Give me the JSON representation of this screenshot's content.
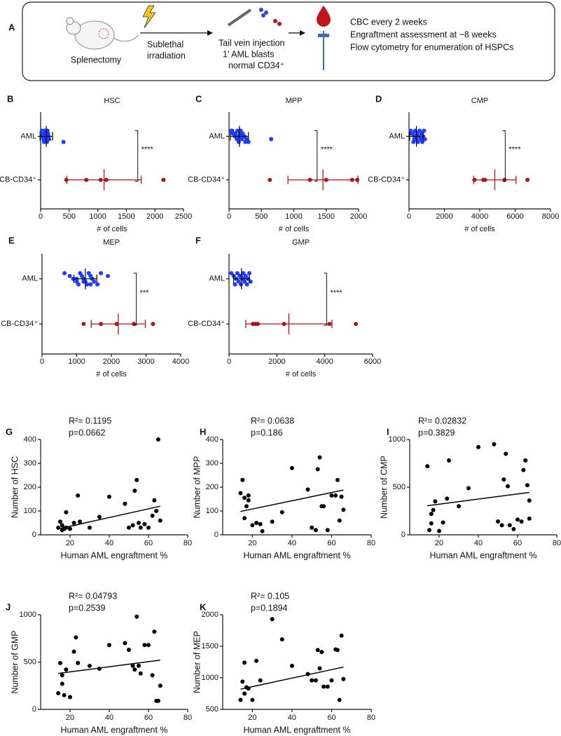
{
  "schematic": {
    "panel": "A",
    "mouse_label": "Splenectomy",
    "irradiation": [
      "Sublethal",
      "irradiation"
    ],
    "injection": [
      "Tail vein injection",
      "1' AML blasts",
      "normal CD34⁺"
    ],
    "monitoring": [
      "CBC every 2 weeks",
      "Engraftment assessment at ~8 weeks",
      "Flow cytometry for enumeration of HSPCs"
    ]
  },
  "chart_data": [
    {
      "type": "dotplot",
      "panel": "B",
      "title": "HSC",
      "xlabel": "# of cells",
      "xlim": [
        0,
        2500
      ],
      "xticks": [
        0,
        500,
        1000,
        1500,
        2000,
        2500
      ],
      "significance": "****",
      "series": [
        {
          "name": "AML",
          "color": "#1f3cff",
          "bar_color": "#111111",
          "values": [
            20,
            30,
            40,
            50,
            60,
            70,
            80,
            90,
            100,
            110,
            120,
            130,
            140,
            150,
            60,
            80,
            100,
            40,
            120,
            400
          ],
          "mean": 100,
          "sd": 110
        },
        {
          "name": "CB-CD34⁺",
          "color": "#a31b1b",
          "bar_color": "#a31b1b",
          "values": [
            450,
            800,
            1050,
            1150,
            2150
          ],
          "mean": 1110,
          "sd": 650
        }
      ]
    },
    {
      "type": "dotplot",
      "panel": "C",
      "title": "MPP",
      "xlabel": "# of cells",
      "xlim": [
        0,
        2000
      ],
      "xticks": [
        0,
        500,
        1000,
        1500,
        2000
      ],
      "significance": "****",
      "series": [
        {
          "name": "AML",
          "color": "#1f3cff",
          "bar_color": "#111111",
          "values": [
            30,
            60,
            90,
            120,
            150,
            180,
            210,
            240,
            270,
            300,
            50,
            100,
            150,
            200,
            250,
            130,
            170,
            210,
            650
          ],
          "mean": 160,
          "sd": 140
        },
        {
          "name": "CB-CD34⁺",
          "color": "#a31b1b",
          "bar_color": "#a31b1b",
          "values": [
            630,
            1250,
            1500,
            1900,
            1980
          ],
          "mean": 1450,
          "sd": 540
        }
      ]
    },
    {
      "type": "dotplot",
      "panel": "D",
      "title": "CMP",
      "xlabel": "# of cells",
      "xlim": [
        0,
        8000
      ],
      "xticks": [
        0,
        2000,
        4000,
        6000,
        8000
      ],
      "significance": "****",
      "series": [
        {
          "name": "AML",
          "color": "#1f3cff",
          "bar_color": "#111111",
          "values": [
            100,
            200,
            300,
            400,
            500,
            600,
            700,
            800,
            900,
            250,
            350,
            450,
            550,
            650,
            750,
            850,
            150,
            500,
            300
          ],
          "mean": 420,
          "sd": 380
        },
        {
          "name": "CB-CD34⁺",
          "color": "#a31b1b",
          "bar_color": "#a31b1b",
          "values": [
            3700,
            4200,
            4300,
            5400,
            6700
          ],
          "mean": 4850,
          "sd": 1200
        }
      ]
    },
    {
      "type": "dotplot",
      "panel": "E",
      "title": "MEP",
      "xlabel": "# of cells",
      "xlim": [
        0,
        4000
      ],
      "xticks": [
        0,
        1000,
        2000,
        3000,
        4000
      ],
      "significance": "***",
      "series": [
        {
          "name": "AML",
          "color": "#1f3cff",
          "bar_color": "#111111",
          "values": [
            650,
            800,
            900,
            1000,
            1050,
            1100,
            1150,
            1200,
            1250,
            1300,
            1350,
            1400,
            1450,
            1500,
            1600,
            1700,
            1900,
            1000,
            1200,
            1400
          ],
          "mean": 1250,
          "sd": 330
        },
        {
          "name": "CB-CD34⁺",
          "color": "#a31b1b",
          "bar_color": "#a31b1b",
          "values": [
            1200,
            1700,
            2150,
            2650,
            3200
          ],
          "mean": 2200,
          "sd": 780
        }
      ]
    },
    {
      "type": "dotplot",
      "panel": "F",
      "title": "GMP",
      "xlabel": "# of cells",
      "xlim": [
        0,
        6000
      ],
      "xticks": [
        0,
        2000,
        4000,
        6000
      ],
      "significance": "****",
      "series": [
        {
          "name": "AML",
          "color": "#1f3cff",
          "bar_color": "#111111",
          "values": [
            100,
            200,
            300,
            400,
            500,
            600,
            700,
            800,
            900,
            250,
            350,
            450,
            550,
            650,
            750,
            850,
            500,
            600
          ],
          "mean": 520,
          "sd": 330
        },
        {
          "name": "CB-CD34⁺",
          "color": "#a31b1b",
          "bar_color": "#a31b1b",
          "values": [
            1000,
            1100,
            1200,
            2300,
            4200,
            5300
          ],
          "mean": 2500,
          "sd": 1800
        }
      ]
    },
    {
      "type": "scatter",
      "panel": "G",
      "xlabel": "Human AML engraftment %",
      "ylabel": "Number of HSC",
      "annotations": [
        "R²= 0.1195",
        "p=0.0662"
      ],
      "color": "#000000",
      "xlim": [
        5,
        80
      ],
      "xticks": [
        20,
        40,
        60,
        80
      ],
      "ylim": [
        0,
        400
      ],
      "yticks": [
        0,
        100,
        200,
        300,
        400
      ],
      "x": [
        14,
        15,
        16,
        16,
        17,
        18,
        18,
        20,
        22,
        24,
        25,
        30,
        35,
        40,
        48,
        50,
        52,
        53,
        54,
        55,
        56,
        58,
        60,
        62,
        63,
        64,
        65,
        66
      ],
      "values": [
        30,
        55,
        20,
        40,
        25,
        30,
        95,
        25,
        50,
        165,
        55,
        30,
        75,
        160,
        130,
        30,
        40,
        185,
        230,
        50,
        30,
        45,
        30,
        80,
        145,
        100,
        400,
        60
      ],
      "fit_x": [
        14,
        66
      ],
      "fit_y": [
        25,
        120
      ]
    },
    {
      "type": "scatter",
      "panel": "H",
      "xlabel": "Human AML engraftment %",
      "ylabel": "Number of MPP",
      "annotations": [
        "R²= 0.0638",
        "p=0.186"
      ],
      "color": "#000000",
      "xlim": [
        5,
        80
      ],
      "xticks": [
        20,
        40,
        60,
        80
      ],
      "ylim": [
        0,
        400
      ],
      "yticks": [
        0,
        100,
        200,
        300,
        400
      ],
      "x": [
        14,
        15,
        16,
        16,
        17,
        18,
        18,
        20,
        22,
        24,
        25,
        30,
        35,
        40,
        48,
        50,
        52,
        53,
        54,
        55,
        56,
        58,
        60,
        62,
        63,
        64,
        65,
        66
      ],
      "values": [
        175,
        230,
        70,
        155,
        120,
        145,
        165,
        40,
        50,
        45,
        15,
        55,
        95,
        280,
        190,
        30,
        20,
        275,
        325,
        120,
        120,
        20,
        165,
        165,
        230,
        60,
        160,
        105
      ],
      "fit_x": [
        14,
        66
      ],
      "fit_y": [
        98,
        188
      ]
    },
    {
      "type": "scatter",
      "panel": "I",
      "xlabel": "Human AML engraftment %",
      "ylabel": "Number of CMP",
      "annotations": [
        "R²= 0.02832",
        "p=0.3829"
      ],
      "color": "#000000",
      "xlim": [
        5,
        80
      ],
      "xticks": [
        20,
        40,
        60,
        80
      ],
      "ylim": [
        0,
        1000
      ],
      "yticks": [
        0,
        500,
        1000
      ],
      "x": [
        14,
        15,
        16,
        16,
        17,
        18,
        20,
        22,
        24,
        25,
        30,
        35,
        40,
        48,
        50,
        52,
        53,
        54,
        55,
        56,
        58,
        60,
        62,
        63,
        64,
        65,
        66,
        66
      ],
      "values": [
        720,
        50,
        220,
        120,
        260,
        350,
        40,
        130,
        380,
        780,
        300,
        490,
        920,
        950,
        140,
        100,
        580,
        850,
        510,
        100,
        60,
        160,
        140,
        680,
        780,
        520,
        360,
        170
      ],
      "fit_x": [
        14,
        66
      ],
      "fit_y": [
        305,
        445
      ]
    },
    {
      "type": "scatter",
      "panel": "J",
      "xlabel": "Human AML engraftment %",
      "ylabel": "Number of GMP",
      "annotations": [
        "R²= 0.04793",
        "p=0.2539"
      ],
      "color": "#000000",
      "xlim": [
        5,
        80
      ],
      "xticks": [
        20,
        40,
        60,
        80
      ],
      "ylim": [
        0,
        1000
      ],
      "yticks": [
        0,
        500,
        1000
      ],
      "x": [
        14,
        15,
        16,
        16,
        17,
        18,
        20,
        22,
        23,
        24,
        30,
        35,
        40,
        48,
        50,
        52,
        53,
        54,
        55,
        56,
        58,
        60,
        62,
        63,
        64,
        65,
        66
      ],
      "values": [
        170,
        490,
        270,
        360,
        150,
        420,
        130,
        610,
        760,
        490,
        460,
        430,
        680,
        700,
        630,
        460,
        420,
        980,
        460,
        380,
        680,
        680,
        360,
        820,
        90,
        90,
        250
      ],
      "fit_x": [
        14,
        66
      ],
      "fit_y": [
        380,
        520
      ]
    },
    {
      "type": "scatter",
      "panel": "K",
      "xlabel": "Human AML engraftment %",
      "ylabel": "Number of MEP",
      "annotations": [
        "R²= 0.105",
        "p=0.1894"
      ],
      "color": "#000000",
      "xlim": [
        5,
        80
      ],
      "xticks": [
        20,
        40,
        60,
        80
      ],
      "ylim": [
        500,
        2000
      ],
      "yticks": [
        500,
        1000,
        1500,
        2000
      ],
      "x": [
        14,
        15,
        16,
        16,
        17,
        18,
        20,
        22,
        24,
        30,
        35,
        40,
        48,
        50,
        52,
        53,
        54,
        55,
        56,
        58,
        60,
        62,
        63,
        64,
        65,
        66
      ],
      "values": [
        650,
        940,
        1240,
        750,
        850,
        830,
        650,
        1270,
        960,
        1930,
        1610,
        1190,
        1060,
        960,
        960,
        1440,
        1150,
        1410,
        860,
        860,
        960,
        1450,
        1440,
        650,
        1670,
        980
      ],
      "fit_x": [
        14,
        66
      ],
      "fit_y": [
        820,
        1170
      ]
    }
  ]
}
